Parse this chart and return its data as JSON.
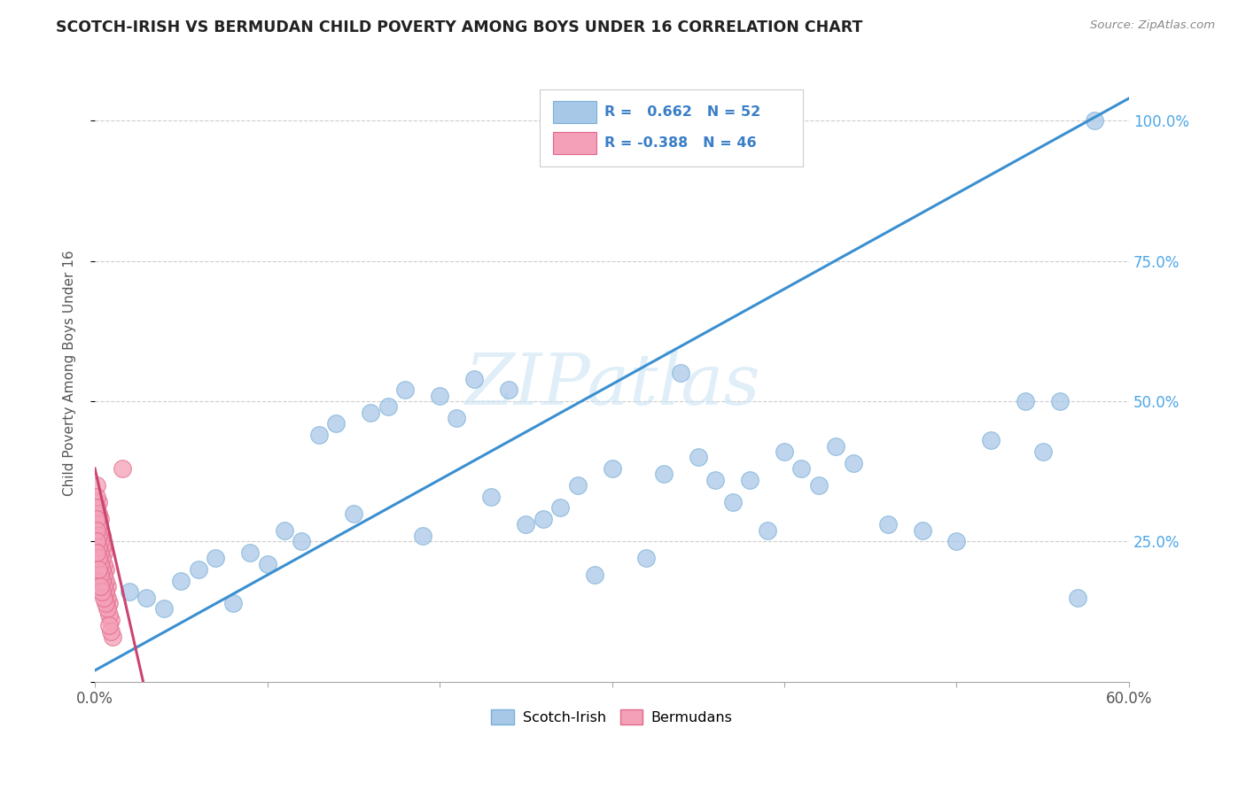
{
  "title": "SCOTCH-IRISH VS BERMUDAN CHILD POVERTY AMONG BOYS UNDER 16 CORRELATION CHART",
  "source": "Source: ZipAtlas.com",
  "ylabel": "Child Poverty Among Boys Under 16",
  "right_yticks": [
    0.0,
    0.25,
    0.5,
    0.75,
    1.0
  ],
  "right_yticklabels": [
    "",
    "25.0%",
    "50.0%",
    "75.0%",
    "100.0%"
  ],
  "xlim": [
    0.0,
    0.6
  ],
  "ylim": [
    0.0,
    1.1
  ],
  "legend_label1": "Scotch-Irish",
  "legend_label2": "Bermudans",
  "watermark": "ZIPatlas",
  "scotch_irish_color": "#a8c8e8",
  "scotch_irish_edge": "#7ab0d8",
  "bermudan_color": "#f4a0b8",
  "bermudan_edge": "#e06888",
  "trendline_blue": "#3a8fd0",
  "trendline_pink": "#cc4470",
  "blue_trend_x": [
    0.0,
    0.6
  ],
  "blue_trend_y": [
    0.02,
    1.04
  ],
  "pink_trend_x": [
    0.0,
    0.028
  ],
  "pink_trend_y": [
    0.38,
    0.0
  ],
  "background_color": "#ffffff",
  "grid_color": "#cccccc",
  "title_color": "#222222",
  "axis_label_color": "#555555",
  "right_axis_color": "#4da6e8",
  "scotch_irish_x": [
    0.31,
    0.02,
    0.04,
    0.06,
    0.03,
    0.08,
    0.05,
    0.07,
    0.09,
    0.1,
    0.11,
    0.12,
    0.13,
    0.15,
    0.14,
    0.17,
    0.16,
    0.19,
    0.2,
    0.22,
    0.23,
    0.18,
    0.21,
    0.24,
    0.25,
    0.27,
    0.26,
    0.28,
    0.3,
    0.29,
    0.32,
    0.33,
    0.35,
    0.37,
    0.34,
    0.36,
    0.38,
    0.4,
    0.41,
    0.43,
    0.42,
    0.39,
    0.44,
    0.46,
    0.48,
    0.5,
    0.52,
    0.54,
    0.55,
    0.56,
    0.57,
    0.58
  ],
  "scotch_irish_y": [
    1.02,
    0.16,
    0.13,
    0.2,
    0.15,
    0.14,
    0.18,
    0.22,
    0.23,
    0.21,
    0.27,
    0.25,
    0.44,
    0.3,
    0.46,
    0.49,
    0.48,
    0.26,
    0.51,
    0.54,
    0.33,
    0.52,
    0.47,
    0.52,
    0.28,
    0.31,
    0.29,
    0.35,
    0.38,
    0.19,
    0.22,
    0.37,
    0.4,
    0.32,
    0.55,
    0.36,
    0.36,
    0.41,
    0.38,
    0.42,
    0.35,
    0.27,
    0.39,
    0.28,
    0.27,
    0.25,
    0.43,
    0.5,
    0.41,
    0.5,
    0.15,
    1.0
  ],
  "bermudan_x": [
    0.001,
    0.002,
    0.003,
    0.004,
    0.005,
    0.006,
    0.007,
    0.008,
    0.009,
    0.01,
    0.001,
    0.002,
    0.003,
    0.004,
    0.005,
    0.006,
    0.007,
    0.008,
    0.009,
    0.001,
    0.002,
    0.003,
    0.004,
    0.005,
    0.006,
    0.007,
    0.008,
    0.001,
    0.002,
    0.003,
    0.004,
    0.005,
    0.006,
    0.001,
    0.002,
    0.003,
    0.004,
    0.005,
    0.001,
    0.002,
    0.003,
    0.004,
    0.001,
    0.002,
    0.003,
    0.016
  ],
  "bermudan_y": [
    0.35,
    0.32,
    0.29,
    0.26,
    0.23,
    0.2,
    0.17,
    0.14,
    0.11,
    0.08,
    0.33,
    0.3,
    0.27,
    0.24,
    0.21,
    0.18,
    0.15,
    0.12,
    0.09,
    0.31,
    0.28,
    0.25,
    0.22,
    0.19,
    0.16,
    0.13,
    0.1,
    0.29,
    0.26,
    0.23,
    0.2,
    0.17,
    0.14,
    0.27,
    0.24,
    0.21,
    0.18,
    0.15,
    0.25,
    0.22,
    0.19,
    0.16,
    0.23,
    0.2,
    0.17,
    0.38
  ]
}
